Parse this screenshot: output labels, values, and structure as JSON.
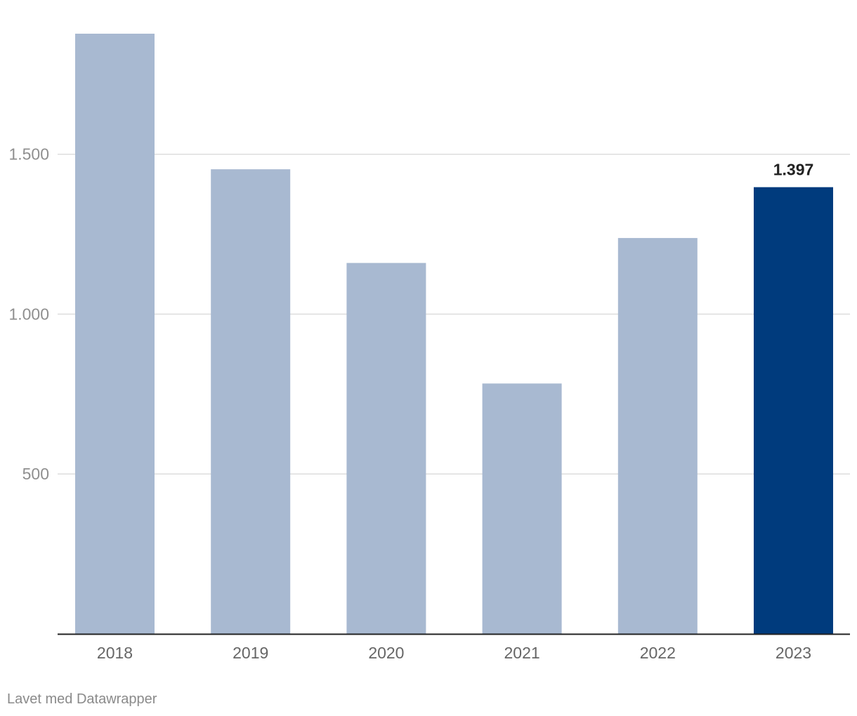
{
  "chart_data": {
    "type": "bar",
    "categories": [
      "2018",
      "2019",
      "2020",
      "2021",
      "2022",
      "2023"
    ],
    "values": [
      1877,
      1453,
      1160,
      783,
      1238,
      1397
    ],
    "highlight_index": 5,
    "highlight_label": "1.397",
    "yticks": [
      500,
      1000,
      1500
    ],
    "ytick_labels": [
      "500",
      "1.000",
      "1.500"
    ],
    "ylim": [
      0,
      1877
    ],
    "grid": true,
    "colors": {
      "bar": "#a8b9d1",
      "highlight": "#003b7d",
      "grid": "#dddddd",
      "axis": "#222222",
      "tick_text": "#8f8f8f",
      "label_text": "#222222"
    }
  },
  "footer": {
    "credit": "Lavet med Datawrapper"
  }
}
